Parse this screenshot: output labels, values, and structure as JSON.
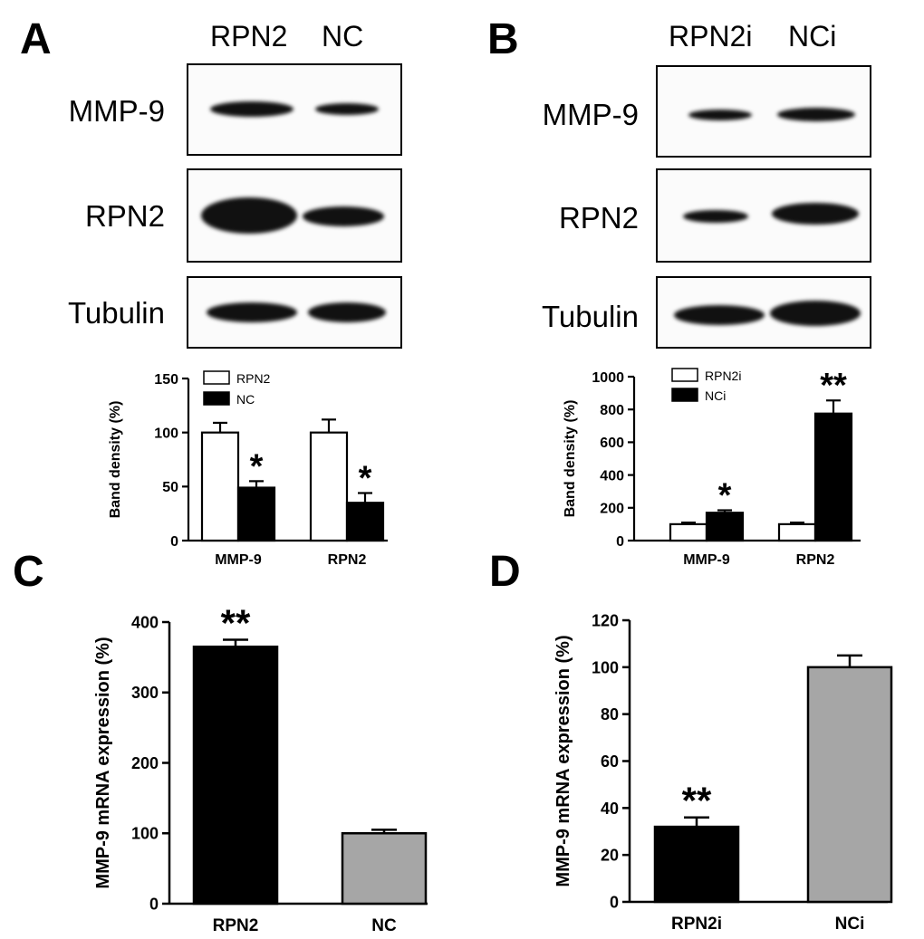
{
  "panels": [
    {
      "letter": "A",
      "lanes": [
        "RPN2",
        "NC"
      ],
      "proteins": [
        "MMP-9",
        "RPN2",
        "Tubulin"
      ]
    },
    {
      "letter": "B",
      "lanes": [
        "RPN2i",
        "NCi"
      ],
      "proteins": [
        "MMP-9",
        "RPN2",
        "Tubulin"
      ]
    },
    {
      "letter": "C"
    },
    {
      "letter": "D"
    }
  ],
  "chart_data": [
    {
      "type": "bar",
      "panel": "A",
      "categories": [
        "MMP-9",
        "RPN2"
      ],
      "series": [
        {
          "name": "RPN2",
          "values": [
            100,
            100
          ],
          "errors": [
            9,
            12
          ],
          "color": "#ffffff"
        },
        {
          "name": "NC",
          "values": [
            49,
            35
          ],
          "errors": [
            6,
            9
          ],
          "color": "#000000"
        }
      ],
      "annotations": [
        [
          "",
          "*"
        ],
        [
          "",
          "*"
        ]
      ],
      "ylabel": "Band density (%)",
      "ylim": [
        0,
        150
      ],
      "yticks": [
        "0",
        "50",
        "100",
        "150"
      ],
      "legend": "top-left"
    },
    {
      "type": "bar",
      "panel": "B",
      "categories": [
        "MMP-9",
        "RPN2"
      ],
      "series": [
        {
          "name": "RPN2i",
          "values": [
            100,
            100
          ],
          "errors": [
            10,
            10
          ],
          "color": "#ffffff"
        },
        {
          "name": "NCi",
          "values": [
            170,
            775
          ],
          "errors": [
            15,
            80
          ],
          "color": "#000000"
        }
      ],
      "annotations": [
        [
          "",
          "*"
        ],
        [
          "",
          "**"
        ]
      ],
      "ylabel": "Band density (%)",
      "ylim": [
        0,
        1000
      ],
      "yticks": [
        "0",
        "200",
        "400",
        "600",
        "800",
        "1000"
      ],
      "legend": "top-left"
    },
    {
      "type": "bar",
      "panel": "C",
      "categories": [
        "RPN2",
        "NC"
      ],
      "values": [
        365,
        100
      ],
      "errors": [
        10,
        5
      ],
      "colors": [
        "#000000",
        "#a6a6a6"
      ],
      "annotations": [
        "**",
        ""
      ],
      "ylabel": "MMP-9 mRNA expression (%)",
      "ylim": [
        0,
        400
      ],
      "yticks": [
        "0",
        "100",
        "200",
        "300",
        "400"
      ]
    },
    {
      "type": "bar",
      "panel": "D",
      "categories": [
        "RPN2i",
        "NCi"
      ],
      "values": [
        32,
        100
      ],
      "errors": [
        4,
        5
      ],
      "colors": [
        "#000000",
        "#a6a6a6"
      ],
      "annotations": [
        "**",
        ""
      ],
      "ylabel": "MMP-9 mRNA expression (%)",
      "ylim": [
        0,
        120
      ],
      "yticks": [
        "0",
        "20",
        "40",
        "60",
        "80",
        "100",
        "120"
      ]
    }
  ]
}
